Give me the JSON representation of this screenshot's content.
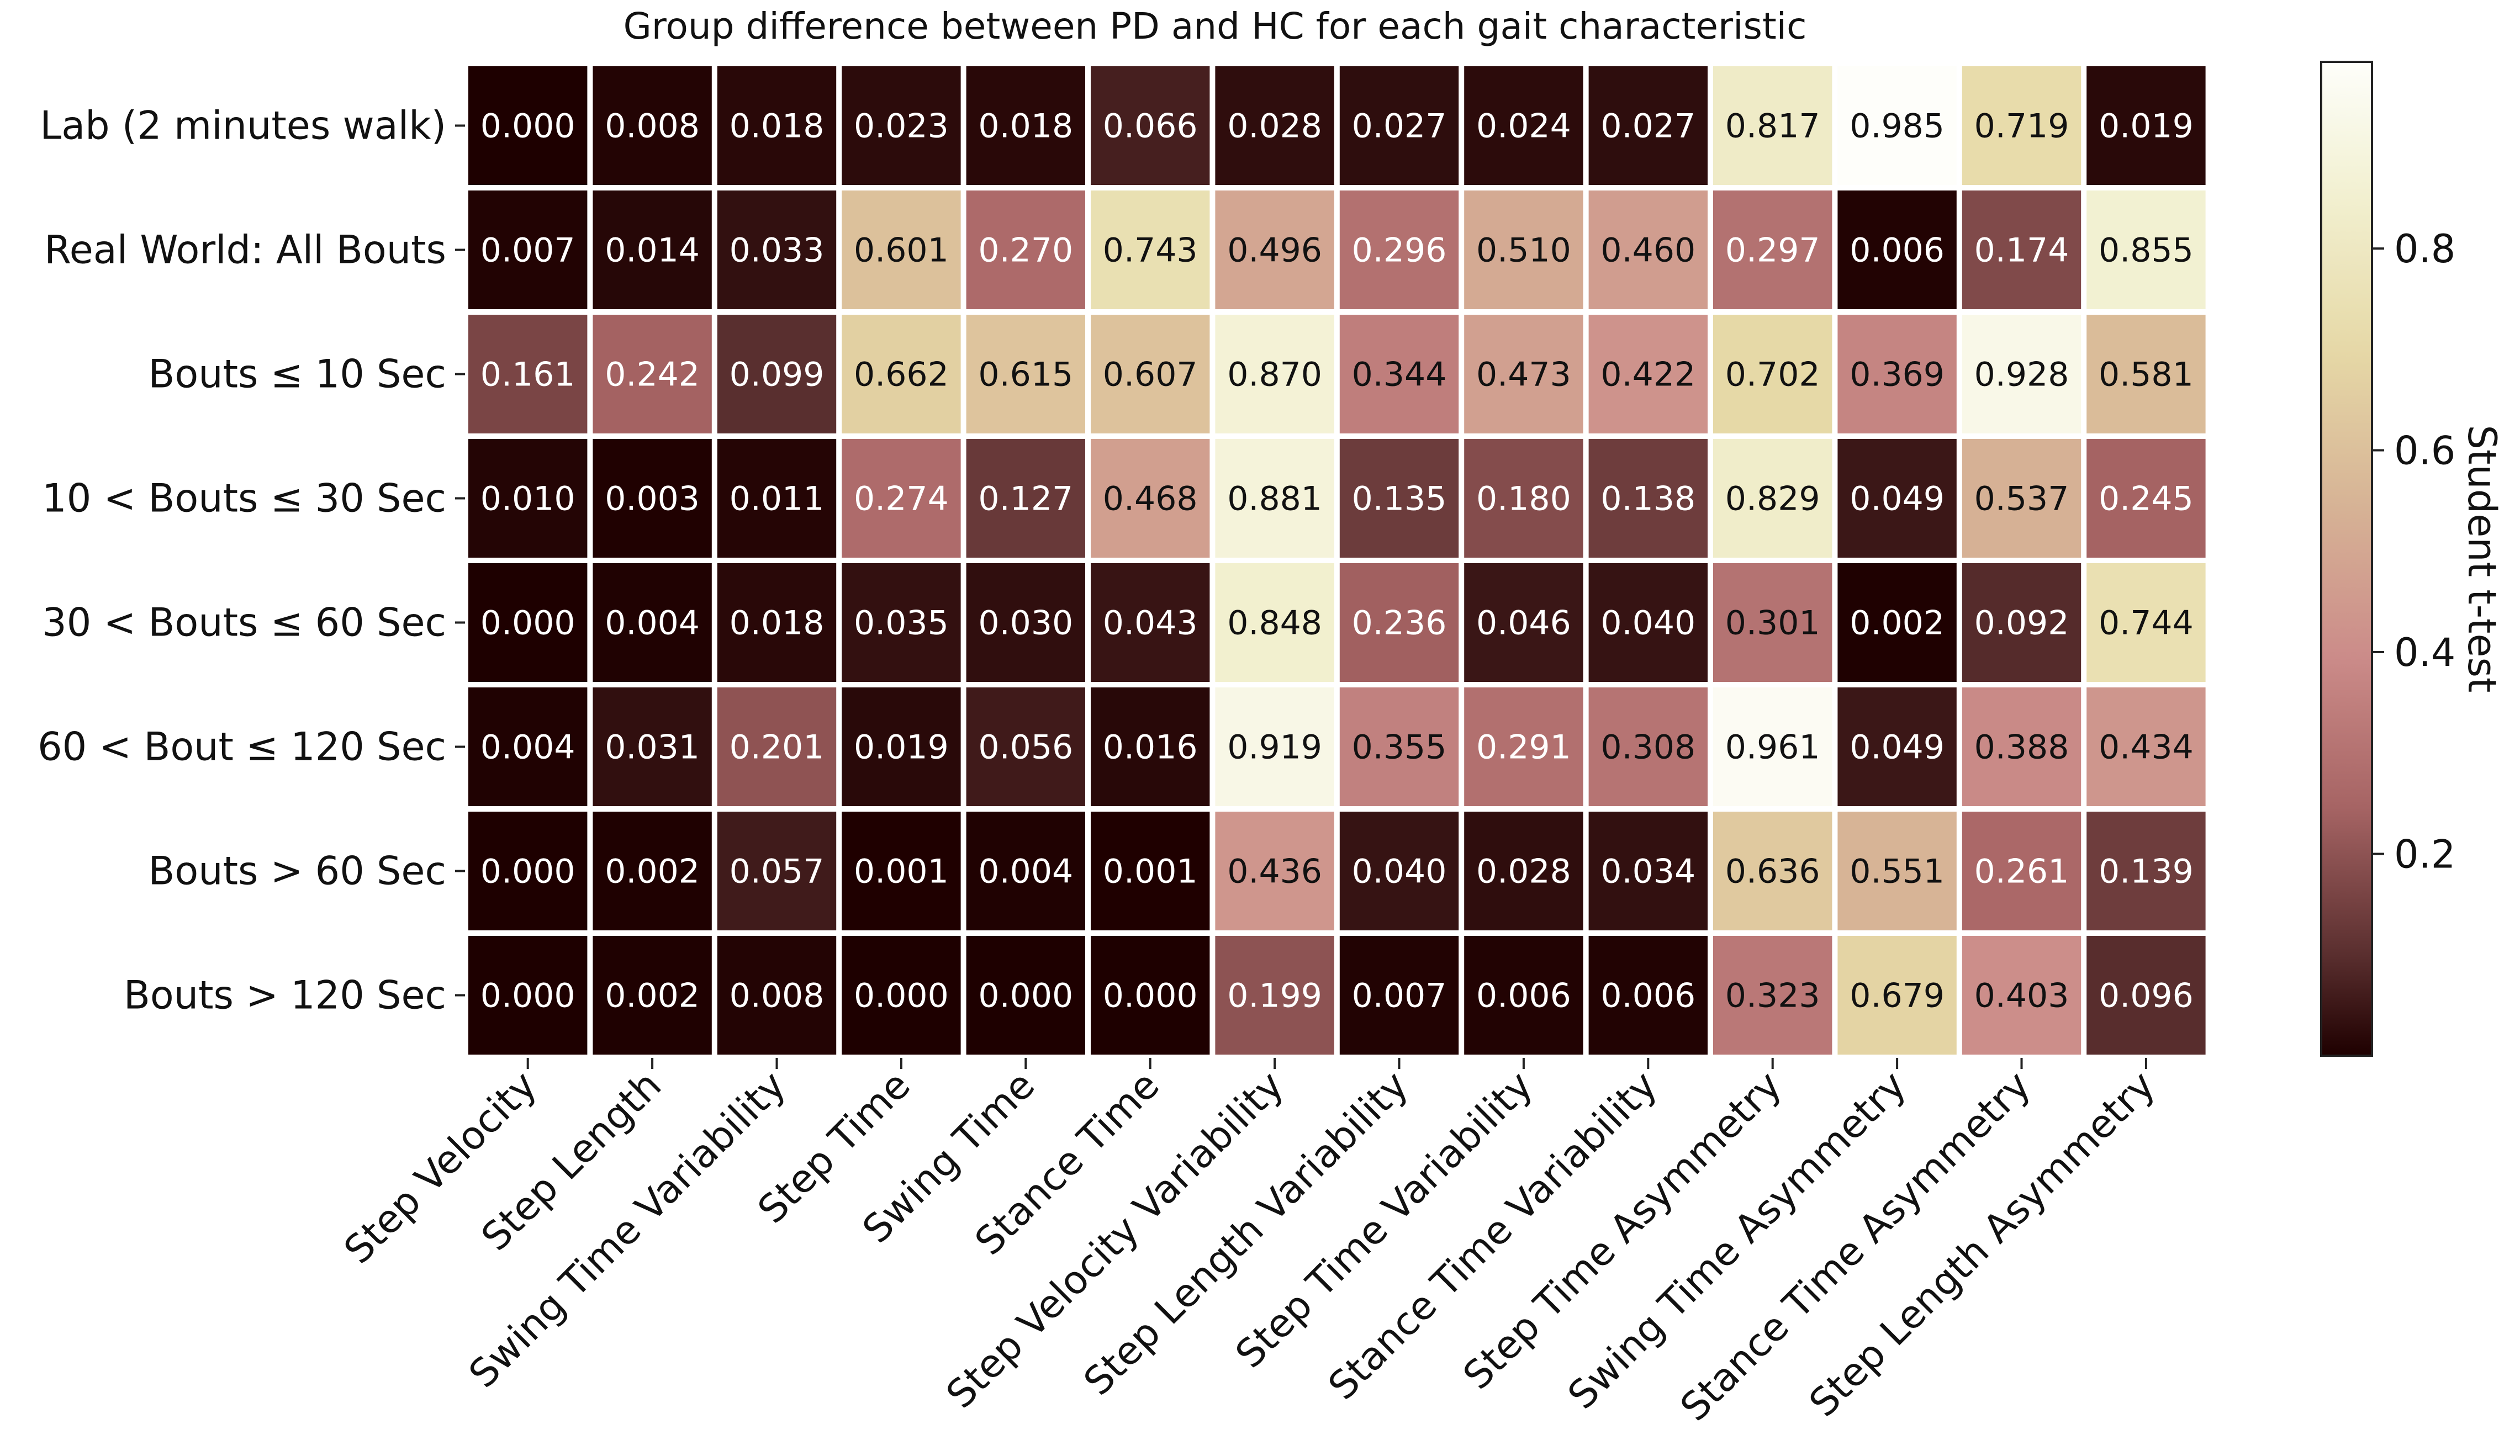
{
  "chart_data": {
    "type": "heatmap",
    "title": "Group difference between PD and HC for each gait characteristic",
    "rows": [
      "Lab (2 minutes walk)",
      "Real World: All Bouts",
      "Bouts ≤ 10 Sec",
      "10 < Bouts ≤ 30 Sec",
      "30 < Bouts ≤ 60 Sec",
      "60 < Bout ≤ 120 Sec",
      "Bouts > 60 Sec",
      "Bouts > 120 Sec"
    ],
    "columns": [
      "Step Velocity",
      "Step Length",
      "Swing Time Variability",
      "Step Time",
      "Swing Time",
      "Stance Time",
      "Step Velocity Variability",
      "Step Length Variability",
      "Step Time Variability",
      "Stance Time Variability",
      "Step Time Asymmetry",
      "Swing Time Asymmetry",
      "Stance Time Asymmetry",
      "Step Length Asymmetry"
    ],
    "values": [
      [
        "0.000",
        "0.008",
        "0.018",
        "0.023",
        "0.018",
        "0.066",
        "0.028",
        "0.027",
        "0.024",
        "0.027",
        "0.817",
        "0.985",
        "0.719",
        "0.019"
      ],
      [
        "0.007",
        "0.014",
        "0.033",
        "0.601",
        "0.270",
        "0.743",
        "0.496",
        "0.296",
        "0.510",
        "0.460",
        "0.297",
        "0.006",
        "0.174",
        "0.855"
      ],
      [
        "0.161",
        "0.242",
        "0.099",
        "0.662",
        "0.615",
        "0.607",
        "0.870",
        "0.344",
        "0.473",
        "0.422",
        "0.702",
        "0.369",
        "0.928",
        "0.581"
      ],
      [
        "0.010",
        "0.003",
        "0.011",
        "0.274",
        "0.127",
        "0.468",
        "0.881",
        "0.135",
        "0.180",
        "0.138",
        "0.829",
        "0.049",
        "0.537",
        "0.245"
      ],
      [
        "0.000",
        "0.004",
        "0.018",
        "0.035",
        "0.030",
        "0.043",
        "0.848",
        "0.236",
        "0.046",
        "0.040",
        "0.301",
        "0.002",
        "0.092",
        "0.744"
      ],
      [
        "0.004",
        "0.031",
        "0.201",
        "0.019",
        "0.056",
        "0.016",
        "0.919",
        "0.355",
        "0.291",
        "0.308",
        "0.961",
        "0.049",
        "0.388",
        "0.434"
      ],
      [
        "0.000",
        "0.002",
        "0.057",
        "0.001",
        "0.004",
        "0.001",
        "0.436",
        "0.040",
        "0.028",
        "0.034",
        "0.636",
        "0.551",
        "0.261",
        "0.139"
      ],
      [
        "0.000",
        "0.002",
        "0.008",
        "0.000",
        "0.000",
        "0.000",
        "0.199",
        "0.007",
        "0.006",
        "0.006",
        "0.323",
        "0.679",
        "0.403",
        "0.096"
      ]
    ],
    "colorbar": {
      "label": "Student t-test",
      "range": [
        0,
        0.985
      ],
      "ticks": [
        "0.2",
        "0.4",
        "0.6",
        "0.8"
      ],
      "tick_values": [
        0.2,
        0.4,
        0.6,
        0.8
      ],
      "colormap": "pink",
      "stops": [
        {
          "v": 0.0,
          "color": "#1e0000"
        },
        {
          "v": 0.1,
          "color": "#5a2f2f"
        },
        {
          "v": 0.25,
          "color": "#a86565"
        },
        {
          "v": 0.4,
          "color": "#cc8d8a"
        },
        {
          "v": 0.55,
          "color": "#d7b496"
        },
        {
          "v": 0.7,
          "color": "#e6d9a6"
        },
        {
          "v": 0.85,
          "color": "#f2f0d0"
        },
        {
          "v": 1.0,
          "color": "#ffffff"
        }
      ],
      "light_text_threshold": 0.3
    },
    "text_colors": {
      "light": "#ffffff",
      "dark": "#111111"
    }
  }
}
